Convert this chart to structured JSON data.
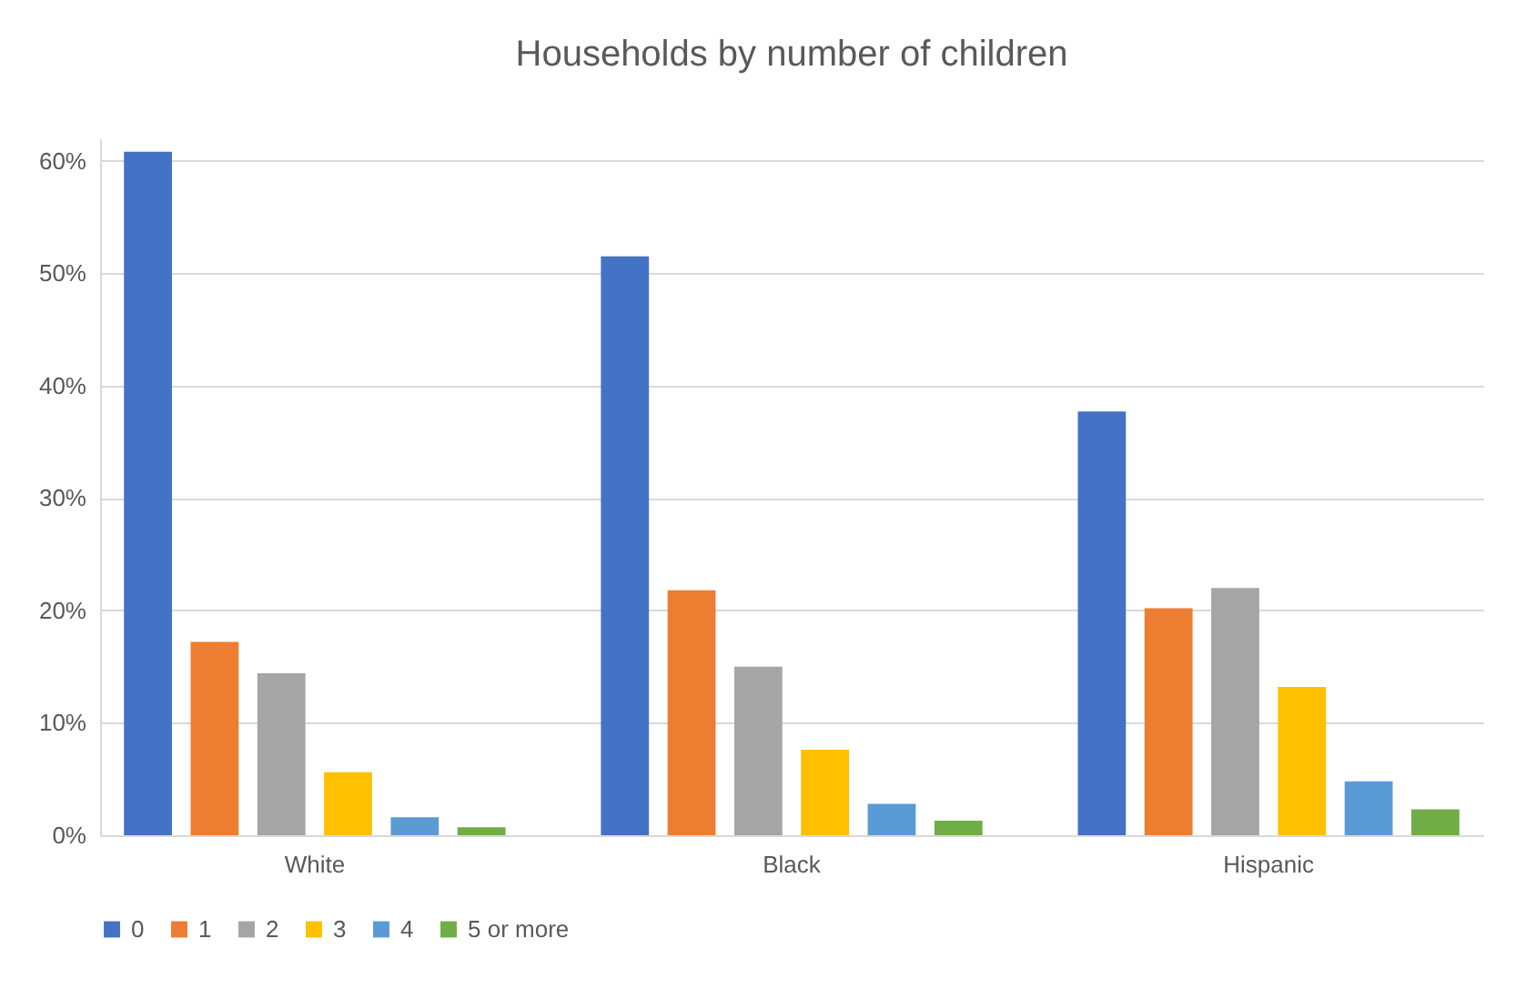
{
  "chart_data": {
    "type": "bar",
    "title": "Households by number of children",
    "categories": [
      "White",
      "Black",
      "Hispanic"
    ],
    "series": [
      {
        "name": "0",
        "color": "#4472c4",
        "values": [
          60.8,
          51.5,
          37.7
        ]
      },
      {
        "name": "1",
        "color": "#ed7d31",
        "values": [
          17.2,
          21.8,
          20.2
        ]
      },
      {
        "name": "2",
        "color": "#a5a5a5",
        "values": [
          14.4,
          15.0,
          22.0
        ]
      },
      {
        "name": "3",
        "color": "#ffc000",
        "values": [
          5.6,
          7.6,
          13.2
        ]
      },
      {
        "name": "4",
        "color": "#5b9bd5",
        "values": [
          1.6,
          2.8,
          4.8
        ]
      },
      {
        "name": "5 or more",
        "color": "#70ad47",
        "values": [
          0.7,
          1.3,
          2.3
        ]
      }
    ],
    "ylim": [
      0,
      62
    ],
    "yticks": [
      {
        "value": 0,
        "label": "0%"
      },
      {
        "value": 10,
        "label": "10%"
      },
      {
        "value": 20,
        "label": "20%"
      },
      {
        "value": 30,
        "label": "30%"
      },
      {
        "value": 40,
        "label": "40%"
      },
      {
        "value": 50,
        "label": "50%"
      },
      {
        "value": 60,
        "label": "60%"
      }
    ],
    "grid": "y",
    "legend": "bottom"
  }
}
